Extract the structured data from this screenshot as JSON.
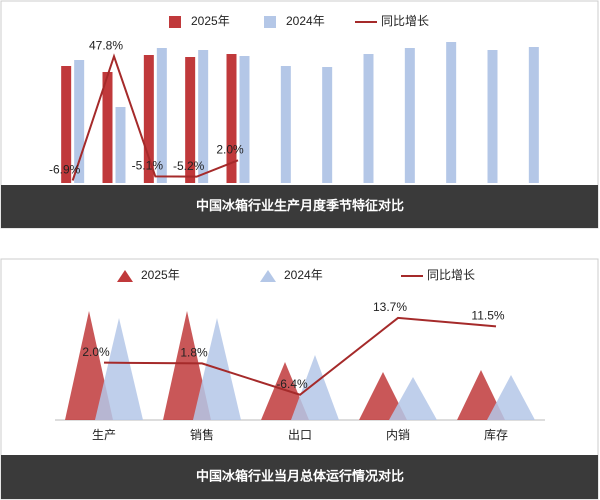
{
  "chart_data": [
    {
      "type": "bar",
      "title": "中国冰箱行业生产月度季节特征对比",
      "categories": [
        null,
        null,
        null,
        null,
        null,
        null,
        null,
        null,
        null,
        null,
        null,
        null
      ],
      "ylim": [
        0,
        168
      ],
      "y2lim": [
        -8,
        66
      ],
      "series": [
        {
          "name": "2025年",
          "color": "#c0393b",
          "values": [
            117,
            111,
            128,
            126,
            129,
            null,
            null,
            null,
            null,
            null,
            null,
            null
          ]
        },
        {
          "name": "2024年",
          "color": "#b4c7e7",
          "values": [
            123,
            76,
            135,
            133,
            127,
            117,
            116,
            129,
            135,
            141,
            133,
            136
          ]
        },
        {
          "name": "同比增长",
          "color": "#a52a2a",
          "axis": "y2",
          "values": [
            -6.9,
            47.8,
            -5.1,
            -5.2,
            2.0,
            null,
            null,
            null,
            null,
            null,
            null,
            null
          ],
          "value_labels": [
            "-6.9%",
            "47.8%",
            "-5.1%",
            "-5.2%",
            "2.0%",
            null,
            null,
            null,
            null,
            null,
            null,
            null
          ]
        }
      ]
    },
    {
      "type": "triangle",
      "title": "中国冰箱行业当月总体运行情况对比",
      "categories": [
        "生产",
        "销售",
        "出口",
        "内销",
        "库存"
      ],
      "ylim": [
        0,
        130
      ],
      "y2lim": [
        -13,
        21
      ],
      "series": [
        {
          "name": "2025年",
          "color": "#c0393b",
          "values": [
            109,
            109,
            58,
            48,
            50
          ]
        },
        {
          "name": "2024年",
          "color": "#b4c7e7",
          "values": [
            102,
            102,
            65,
            43,
            45
          ]
        },
        {
          "name": "同比增长",
          "color": "#a52a2a",
          "axis": "y2",
          "values": [
            2.0,
            1.8,
            -6.4,
            13.7,
            11.5
          ],
          "value_labels": [
            "2.0%",
            "1.8%",
            "-6.4%",
            "13.7%",
            "11.5%"
          ]
        }
      ]
    }
  ]
}
